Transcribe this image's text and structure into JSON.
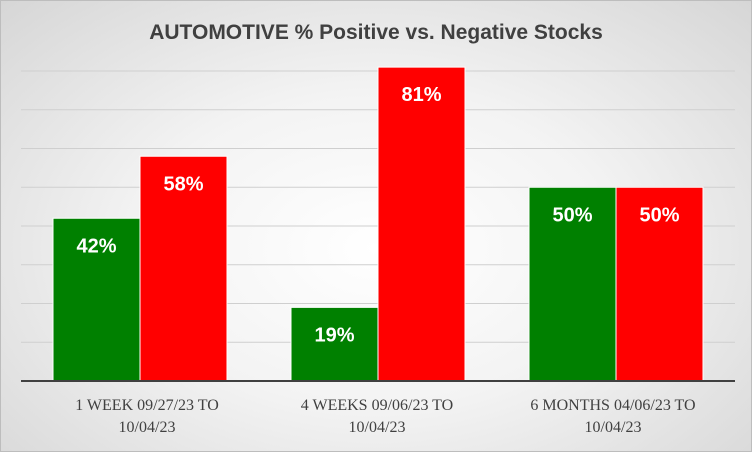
{
  "chart_data": {
    "type": "bar",
    "title": "AUTOMOTIVE % Positive vs. Negative Stocks",
    "categories": [
      [
        "1 WEEK 09/27/23 TO",
        "10/04/23"
      ],
      [
        "4 WEEKS 09/06/23 TO",
        "10/04/23"
      ],
      [
        "6 MONTHS 04/06/23 TO",
        "10/04/23"
      ]
    ],
    "series": [
      {
        "values": [
          42,
          19,
          50
        ],
        "labels": [
          "42%",
          "19%",
          "50%"
        ],
        "color": "#008000"
      },
      {
        "values": [
          58,
          81,
          50
        ],
        "labels": [
          "58%",
          "81%",
          "50%"
        ],
        "color": "#ff0000"
      }
    ],
    "ylim": [
      0,
      80
    ],
    "grid": true,
    "legend": "none",
    "xlabel": "",
    "ylabel": ""
  }
}
